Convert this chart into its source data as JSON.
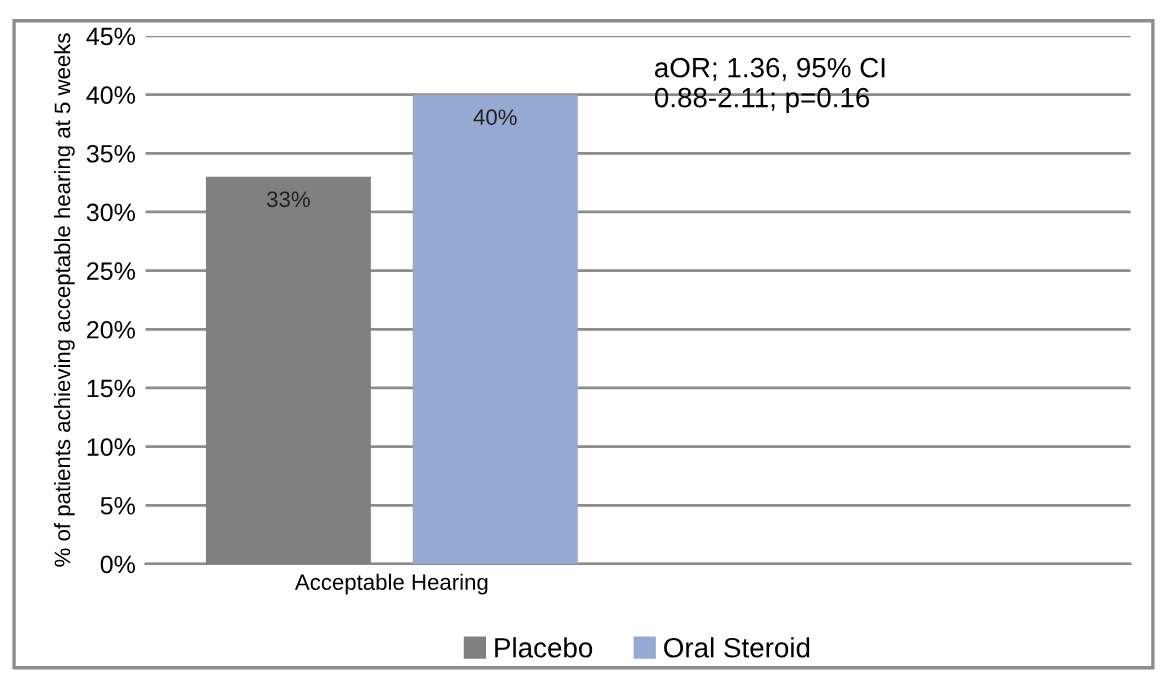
{
  "chart_data": {
    "type": "bar",
    "categories": [
      "Acceptable Hearing",
      null
    ],
    "series": [
      {
        "name": "Placebo",
        "color": "#808080",
        "values": [
          33,
          null
        ]
      },
      {
        "name": "Oral Steroid",
        "color": "#95a9d2",
        "values": [
          40,
          null
        ]
      }
    ],
    "ylabel": "% of patients achieving acceptable hearing at 5 weeks",
    "ylim": [
      0,
      45
    ],
    "yticks": [
      {
        "value": 0,
        "label": "0%"
      },
      {
        "value": 5,
        "label": "5%"
      },
      {
        "value": 10,
        "label": "10%"
      },
      {
        "value": 15,
        "label": "15%"
      },
      {
        "value": 20,
        "label": "20%"
      },
      {
        "value": 25,
        "label": "25%"
      },
      {
        "value": 30,
        "label": "30%"
      },
      {
        "value": 35,
        "label": "35%"
      },
      {
        "value": 40,
        "label": "40%"
      },
      {
        "value": 45,
        "label": "45%"
      }
    ],
    "value_labels": [
      [
        "33%",
        null
      ],
      [
        "40%",
        null
      ]
    ],
    "annotations": [
      "aOR; 1.36, 95% CI\n0.88-2.11; p=0.16"
    ],
    "grid": "y",
    "legend": "bottom"
  }
}
